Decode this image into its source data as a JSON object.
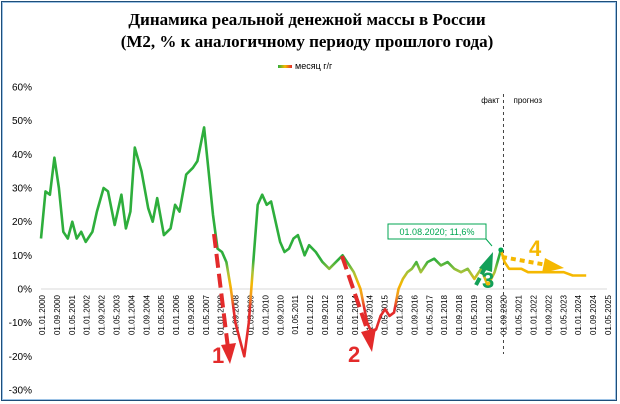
{
  "chart_data": {
    "type": "line",
    "title": "Динамика реальной денежной массы в России",
    "subtitle": "(М2, % к аналогичному периоду прошлого года)",
    "legend": [
      {
        "label": "месяц г/г"
      }
    ],
    "ylim": [
      -30,
      60
    ],
    "yticks": [
      "60%",
      "50%",
      "40%",
      "30%",
      "20%",
      "10%",
      "0%",
      "-10%",
      "-20%",
      "-30%"
    ],
    "ytick_values": [
      60,
      50,
      40,
      30,
      20,
      10,
      0,
      -10,
      -20,
      -30
    ],
    "xlim": [
      2000.0,
      2025.333
    ],
    "xticks": [
      "01.01.2000",
      "01.09.2000",
      "01.05.2001",
      "01.01.2002",
      "01.09.2002",
      "01.05.2003",
      "01.01.2004",
      "01.09.2004",
      "01.05.2005",
      "01.01.2006",
      "01.09.2006",
      "01.05.2007",
      "01.01.2008",
      "01.09.2008",
      "01.05.2009",
      "01.01.2010",
      "01.09.2010",
      "01.05.2011",
      "01.01.2012",
      "01.09.2012",
      "01.05.2013",
      "01.01.2014",
      "01.09.2014",
      "01.05.2015",
      "01.01.2016",
      "01.09.2016",
      "01.05.2017",
      "01.01.2018",
      "01.09.2018",
      "01.05.2019",
      "01.01.2020",
      "01.09.2020",
      "01.05.2021",
      "01.01.2022",
      "01.09.2022",
      "01.05.2023",
      "01.01.2024",
      "01.09.2024",
      "01.05.2025"
    ],
    "series": [
      {
        "name": "месяц г/г",
        "x": [
          2000.0,
          2000.2,
          2000.4,
          2000.6,
          2000.8,
          2001.0,
          2001.2,
          2001.4,
          2001.6,
          2001.8,
          2002.0,
          2002.3,
          2002.5,
          2002.8,
          2003.0,
          2003.3,
          2003.6,
          2003.8,
          2004.0,
          2004.2,
          2004.5,
          2004.8,
          2005.0,
          2005.2,
          2005.5,
          2005.8,
          2006.0,
          2006.2,
          2006.5,
          2006.8,
          2007.0,
          2007.3,
          2007.5,
          2007.7,
          2007.9,
          2008.1,
          2008.3,
          2008.5,
          2008.7,
          2008.9,
          2009.1,
          2009.3,
          2009.5,
          2009.7,
          2009.9,
          2010.1,
          2010.3,
          2010.5,
          2010.7,
          2010.9,
          2011.1,
          2011.3,
          2011.5,
          2011.8,
          2012.0,
          2012.3,
          2012.6,
          2012.9,
          2013.2,
          2013.5,
          2013.8,
          2014.0,
          2014.3,
          2014.6,
          2014.8,
          2015.0,
          2015.2,
          2015.4,
          2015.6,
          2015.8,
          2016.0,
          2016.2,
          2016.4,
          2016.6,
          2016.8,
          2017.0,
          2017.3,
          2017.6,
          2017.9,
          2018.2,
          2018.5,
          2018.8,
          2019.1,
          2019.4,
          2019.7,
          2020.0,
          2020.3,
          2020.583,
          2020.75,
          2020.95,
          2021.2,
          2021.5,
          2021.8,
          2022.2,
          2022.6,
          2023.0,
          2023.4,
          2023.8,
          2024.2,
          2024.4
        ],
        "y": [
          15,
          29,
          28,
          39,
          30,
          17,
          15,
          20,
          15,
          17,
          14,
          17,
          23,
          30,
          29,
          19,
          28,
          18,
          23,
          42,
          35,
          24,
          20,
          27,
          16,
          18,
          25,
          23,
          34,
          36,
          38,
          48,
          35,
          22,
          12,
          11,
          8,
          0,
          -10,
          -15,
          -20,
          -10,
          8,
          25,
          28,
          25,
          26,
          20,
          14,
          11,
          12,
          15,
          16,
          10,
          13,
          11,
          8,
          6,
          8,
          10,
          7,
          5,
          0,
          -10,
          -13,
          -12,
          -8,
          -6,
          -8,
          -7,
          0,
          3,
          5,
          6,
          8,
          5,
          8,
          9,
          7,
          8,
          6,
          5,
          6,
          3,
          6,
          1,
          5,
          11.6,
          8,
          6,
          6,
          6,
          5,
          5,
          5,
          5,
          5,
          4,
          4,
          4
        ]
      }
    ],
    "annotations": {
      "fact_label": "факт",
      "forecast_label": "прогноз",
      "callout": "01.08.2020; 11,6%",
      "callout_point": {
        "x": 2020.583,
        "y": 11.6
      },
      "divider_x": 2020.7,
      "numbers": [
        {
          "label": "1",
          "color": "#e32b2b"
        },
        {
          "label": "2",
          "color": "#e32b2b"
        },
        {
          "label": "3",
          "color": "#13a058"
        },
        {
          "label": "4",
          "color": "#f5b800"
        }
      ]
    },
    "colors": {
      "high": "#2eae3c",
      "mid": "#f5b800",
      "low": "#e32b2b",
      "green_arrow": "#13a058",
      "frame": "#1f4e79"
    },
    "grid": false,
    "legend_position": "top-center"
  }
}
